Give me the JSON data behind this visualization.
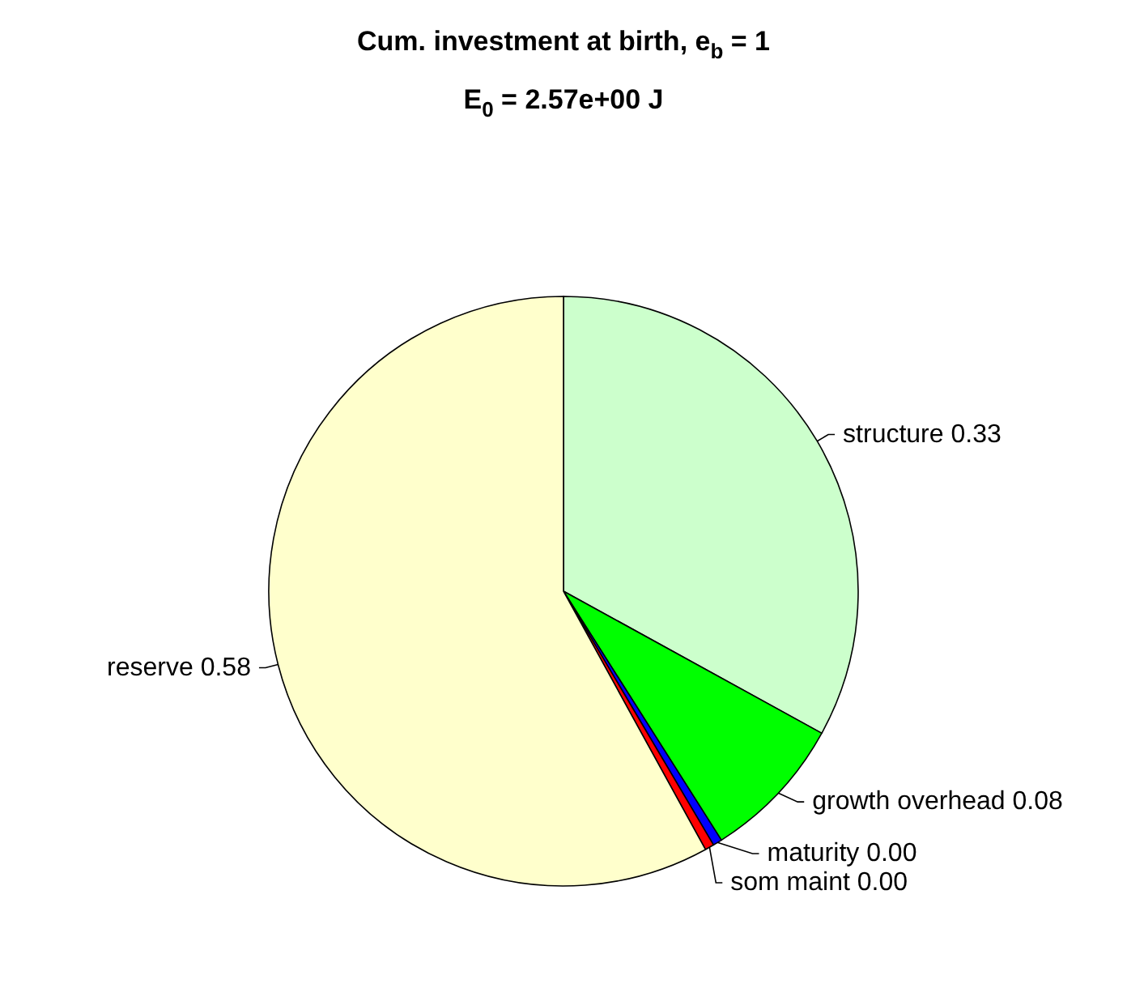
{
  "chart_data": {
    "type": "pie",
    "title": "Cum. investment at birth, e$_{b}$ = 1",
    "subtitle": "E$_{0}$ = 2.57e+00 J",
    "categories": [
      "structure",
      "growth overhead",
      "maturity",
      "som maint",
      "reserve"
    ],
    "values": [
      0.33,
      0.08,
      0.005,
      0.005,
      0.58
    ],
    "value_labels": [
      "0.33",
      "0.08",
      "0.00",
      "0.00",
      "0.58"
    ],
    "colors": [
      "#ccffcc",
      "#00ff00",
      "#0000ff",
      "#ff0000",
      "#ffffcc"
    ],
    "legend": false
  }
}
